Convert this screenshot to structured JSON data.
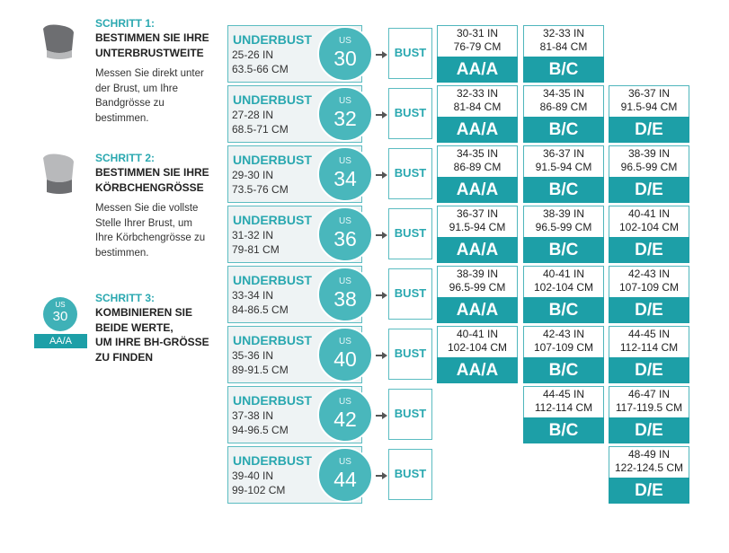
{
  "steps": [
    {
      "title": "SCHRITT 1:",
      "heading": [
        "BESTIMMEN SIE IHRE",
        "UNTERBRUSTWEITE"
      ],
      "body": [
        "Messen Sie direkt unter",
        "der Brust, um Ihre",
        "Bandgrösse zu",
        "bestimmen."
      ]
    },
    {
      "title": "SCHRITT 2:",
      "heading": [
        "BESTIMMEN SIE IHRE",
        "KÖRBCHENGRÖSSE"
      ],
      "body": [
        "Messen Sie die vollste",
        "Stelle Ihrer Brust, um",
        "Ihre Körbchengrösse zu",
        "bestimmen."
      ]
    },
    {
      "title": "SCHRITT 3:",
      "heading": [
        "KOMBINIEREN SIE",
        "BEIDE WERTE,",
        "UM IHRE BH-GRÖSSE",
        "ZU FINDEN"
      ],
      "example": {
        "us": "US",
        "size": "30",
        "cup": "AA/A"
      }
    }
  ],
  "rows": [
    {
      "label": "UNDERBUST",
      "in": "25-26 IN",
      "cm": "63.5-66 CM",
      "us": "US",
      "size": "30",
      "bust": "BUST",
      "cells": [
        {
          "in": "30-31 IN",
          "cm": "76-79 CM",
          "cup": "AA/A"
        },
        {
          "in": "32-33 IN",
          "cm": "81-84 CM",
          "cup": "B/C"
        },
        null
      ]
    },
    {
      "label": "UNDERBUST",
      "in": "27-28 IN",
      "cm": "68.5-71 CM",
      "us": "US",
      "size": "32",
      "bust": "BUST",
      "cells": [
        {
          "in": "32-33 IN",
          "cm": "81-84 CM",
          "cup": "AA/A"
        },
        {
          "in": "34-35 IN",
          "cm": "86-89 CM",
          "cup": "B/C"
        },
        {
          "in": "36-37 IN",
          "cm": "91.5-94 CM",
          "cup": "D/E"
        }
      ]
    },
    {
      "label": "UNDERBUST",
      "in": "29-30 IN",
      "cm": "73.5-76 CM",
      "us": "US",
      "size": "34",
      "bust": "BUST",
      "cells": [
        {
          "in": "34-35 IN",
          "cm": "86-89 CM",
          "cup": "AA/A"
        },
        {
          "in": "36-37 IN",
          "cm": "91.5-94 CM",
          "cup": "B/C"
        },
        {
          "in": "38-39 IN",
          "cm": "96.5-99 CM",
          "cup": "D/E"
        }
      ]
    },
    {
      "label": "UNDERBUST",
      "in": "31-32 IN",
      "cm": "79-81 CM",
      "us": "US",
      "size": "36",
      "bust": "BUST",
      "cells": [
        {
          "in": "36-37 IN",
          "cm": "91.5-94 CM",
          "cup": "AA/A"
        },
        {
          "in": "38-39 IN",
          "cm": "96.5-99 CM",
          "cup": "B/C"
        },
        {
          "in": "40-41 IN",
          "cm": "102-104 CM",
          "cup": "D/E"
        }
      ]
    },
    {
      "label": "UNDERBUST",
      "in": "33-34 IN",
      "cm": "84-86.5 CM",
      "us": "US",
      "size": "38",
      "bust": "BUST",
      "cells": [
        {
          "in": "38-39 IN",
          "cm": "96.5-99 CM",
          "cup": "AA/A"
        },
        {
          "in": "40-41 IN",
          "cm": "102-104 CM",
          "cup": "B/C"
        },
        {
          "in": "42-43 IN",
          "cm": "107-109 CM",
          "cup": "D/E"
        }
      ]
    },
    {
      "label": "UNDERBUST",
      "in": "35-36 IN",
      "cm": "89-91.5 CM",
      "us": "US",
      "size": "40",
      "bust": "BUST",
      "cells": [
        {
          "in": "40-41 IN",
          "cm": "102-104 CM",
          "cup": "AA/A"
        },
        {
          "in": "42-43 IN",
          "cm": "107-109 CM",
          "cup": "B/C"
        },
        {
          "in": "44-45 IN",
          "cm": "112-114 CM",
          "cup": "D/E"
        }
      ]
    },
    {
      "label": "UNDERBUST",
      "in": "37-38 IN",
      "cm": "94-96.5 CM",
      "us": "US",
      "size": "42",
      "bust": "BUST",
      "cells": [
        null,
        {
          "in": "44-45 IN",
          "cm": "112-114 CM",
          "cup": "B/C"
        },
        {
          "in": "46-47 IN",
          "cm": "117-119.5 CM",
          "cup": "D/E"
        }
      ]
    },
    {
      "label": "UNDERBUST",
      "in": "39-40 IN",
      "cm": "99-102 CM",
      "us": "US",
      "size": "44",
      "bust": "BUST",
      "cells": [
        null,
        null,
        {
          "in": "48-49 IN",
          "cm": "122-124.5 CM",
          "cup": "D/E"
        }
      ]
    }
  ]
}
